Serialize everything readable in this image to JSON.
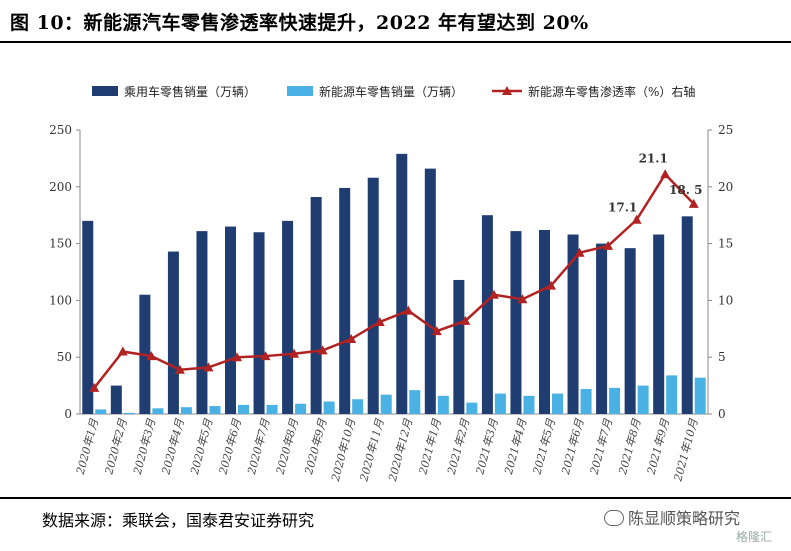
{
  "title": "图 10：新能源汽车零售渗透率快速提升，2022 年有望达到 20%",
  "source": "数据来源：乘联会，国泰君安证券研究",
  "watermark": "陈显顺策略研究",
  "watermark2": "格隆汇",
  "chart_data": {
    "type": "bar",
    "categories": [
      "2020年1月",
      "2020年2月",
      "2020年3月",
      "2020年4月",
      "2020年5月",
      "2020年6月",
      "2020年7月",
      "2020年8月",
      "2020年9月",
      "2020年10月",
      "2020年11月",
      "2020年12月",
      "2021年1月",
      "2021年2月",
      "2021年3月",
      "2021年4月",
      "2021年5月",
      "2021年6月",
      "2021年7月",
      "2021年8月",
      "2021年9月",
      "2021年10月"
    ],
    "series": [
      {
        "name": "乘用车零售销量（万辆）",
        "type": "bar",
        "axis": "left",
        "color": "#1f3d70",
        "values": [
          170,
          25,
          105,
          143,
          161,
          165,
          160,
          170,
          191,
          199,
          208,
          229,
          216,
          118,
          175,
          161,
          162,
          158,
          150,
          146,
          158,
          174
        ]
      },
      {
        "name": "新能源车零售销量（万辆）",
        "type": "bar",
        "axis": "left",
        "color": "#4ab1e4",
        "values": [
          4,
          1,
          5,
          6,
          7,
          8,
          8,
          9,
          11,
          13,
          17,
          21,
          16,
          10,
          18,
          16,
          18,
          22,
          23,
          25,
          34,
          32
        ]
      },
      {
        "name": "新能源车零售渗透率（%）右轴",
        "type": "line",
        "axis": "right",
        "color": "#b22222",
        "values": [
          2.3,
          5.5,
          5.1,
          3.9,
          4.1,
          5.0,
          5.1,
          5.3,
          5.6,
          6.6,
          8.1,
          9.1,
          7.3,
          8.2,
          10.5,
          10.1,
          11.3,
          14.2,
          14.8,
          17.1,
          21.1,
          18.5
        ]
      }
    ],
    "annotations": [
      "17.1",
      "21.1",
      "18. 5"
    ],
    "ylim_left": [
      0,
      250
    ],
    "ylim_right": [
      0,
      25
    ],
    "yticks_left": [
      "0",
      "50",
      "100",
      "150",
      "200",
      "250"
    ],
    "yticks_right": [
      "0",
      "5",
      "10",
      "15",
      "20",
      "25"
    ],
    "grid": false,
    "legend": "top"
  }
}
